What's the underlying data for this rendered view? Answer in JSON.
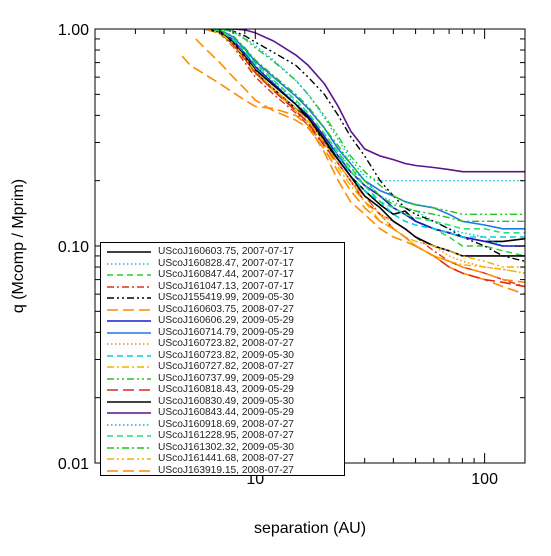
{
  "chart_data": {
    "type": "line",
    "title": "",
    "xlabel": "separation (AU)",
    "ylabel": "q (Mcomp / Mprim)",
    "xscale": "log",
    "yscale": "log",
    "xlim": [
      2.0,
      150
    ],
    "ylim": [
      0.01,
      1.0
    ],
    "x_ticks": [
      {
        "value": 10,
        "label": "10"
      },
      {
        "value": 100,
        "label": "100"
      }
    ],
    "y_ticks": [
      {
        "value": 0.01,
        "label": "0.01"
      },
      {
        "value": 0.1,
        "label": "0.10"
      },
      {
        "value": 1.0,
        "label": "1.00"
      }
    ],
    "grid": false,
    "legend_position": "lower-left",
    "series": [
      {
        "name": "UScoJ160603.75, 2007-07-17",
        "color": "#000000",
        "dash": "solid",
        "width": 1.6,
        "x": [
          6.0,
          7.0,
          8.0,
          9.0,
          10.0,
          12.0,
          15.0,
          17.0,
          20.0,
          23.0,
          26.0,
          30.0,
          35.0,
          40.0,
          45.0,
          50.0,
          60.0,
          70.0,
          80.0,
          100.0,
          120.0,
          150.0
        ],
        "y": [
          1.0,
          0.97,
          0.85,
          0.73,
          0.63,
          0.53,
          0.43,
          0.39,
          0.3,
          0.25,
          0.21,
          0.18,
          0.155,
          0.14,
          0.145,
          0.13,
          0.12,
          0.115,
          0.11,
          0.105,
          0.105,
          0.108
        ]
      },
      {
        "name": "UScoJ160828.47, 2007-07-17",
        "color": "#00c8d2",
        "dash": "dotted",
        "width": 1.4,
        "x": [
          6.0,
          7.0,
          8.0,
          9.0,
          10.0,
          12.0,
          15.0,
          17.0,
          20.0,
          23.0,
          26.0,
          30.0,
          35.0,
          40.0,
          45.0,
          50.0,
          60.0,
          70.0,
          80.0,
          100.0,
          120.0,
          150.0
        ],
        "y": [
          1.0,
          0.98,
          0.9,
          0.78,
          0.68,
          0.57,
          0.46,
          0.4,
          0.32,
          0.27,
          0.23,
          0.2,
          0.17,
          0.16,
          0.15,
          0.145,
          0.13,
          0.12,
          0.115,
          0.11,
          0.1,
          0.1
        ]
      },
      {
        "name": "UScoJ160847.44, 2007-07-17",
        "color": "#2ecc2e",
        "dash": "dashed",
        "width": 1.4,
        "x": [
          6.0,
          7.0,
          8.0,
          9.0,
          10.0,
          12.0,
          15.0,
          17.0,
          20.0,
          23.0,
          26.0,
          30.0,
          35.0,
          40.0,
          45.0,
          50.0,
          60.0,
          70.0,
          80.0,
          100.0,
          120.0,
          150.0
        ],
        "y": [
          1.0,
          0.99,
          0.92,
          0.8,
          0.7,
          0.58,
          0.47,
          0.41,
          0.33,
          0.27,
          0.23,
          0.19,
          0.16,
          0.15,
          0.14,
          0.13,
          0.12,
          0.11,
          0.1,
          0.1,
          0.095,
          0.09
        ]
      },
      {
        "name": "UScoJ161047.13, 2007-07-17",
        "color": "#e03020",
        "dash": "dashdot",
        "width": 1.4,
        "x": [
          6.0,
          7.0,
          8.0,
          9.0,
          10.0,
          12.0,
          15.0,
          17.0,
          20.0,
          23.0,
          26.0,
          30.0,
          35.0,
          40.0,
          45.0,
          50.0,
          60.0,
          70.0,
          80.0,
          100.0,
          120.0,
          150.0
        ],
        "y": [
          1.0,
          0.95,
          0.83,
          0.7,
          0.6,
          0.5,
          0.41,
          0.36,
          0.29,
          0.24,
          0.2,
          0.17,
          0.14,
          0.13,
          0.12,
          0.11,
          0.095,
          0.085,
          0.08,
          0.075,
          0.07,
          0.065
        ]
      },
      {
        "name": "UScoJ155419.99, 2009-05-30",
        "color": "#000000",
        "dash": "dashdotdot",
        "width": 1.4,
        "x": [
          6.0,
          7.0,
          8.0,
          9.0,
          10.0,
          12.0,
          15.0,
          17.0,
          20.0,
          23.0,
          26.0,
          30.0,
          35.0,
          40.0,
          45.0,
          50.0,
          60.0,
          70.0,
          80.0,
          100.0,
          120.0,
          150.0
        ],
        "y": [
          1.0,
          1.0,
          0.98,
          0.93,
          0.87,
          0.78,
          0.68,
          0.6,
          0.5,
          0.4,
          0.32,
          0.26,
          0.2,
          0.17,
          0.15,
          0.14,
          0.13,
          0.12,
          0.11,
          0.1,
          0.09,
          0.085
        ]
      },
      {
        "name": "UScoJ160603.75, 2008-07-27",
        "color": "#ff8c00",
        "dash": "longdash",
        "width": 1.6,
        "x": [
          4.8,
          5.2,
          6.0,
          7.0,
          8.0,
          9.0,
          10.0,
          12.0,
          15.0,
          17.0,
          20.0,
          23.0,
          26.0,
          30.0,
          35.0,
          40.0,
          45.0,
          50.0,
          60.0,
          70.0,
          80.0,
          100.0,
          120.0,
          150.0
        ],
        "y": [
          0.75,
          0.68,
          0.62,
          0.56,
          0.51,
          0.47,
          0.44,
          0.43,
          0.4,
          0.36,
          0.27,
          0.2,
          0.16,
          0.14,
          0.12,
          0.11,
          0.105,
          0.1,
          0.09,
          0.08,
          0.075,
          0.07,
          0.065,
          0.06
        ]
      },
      {
        "name": "UScoJ160606.29, 2009-05-29",
        "color": "#1c1ccc",
        "dash": "solid",
        "width": 1.6,
        "x": [
          6.0,
          7.0,
          8.0,
          9.0,
          10.0,
          12.0,
          15.0,
          17.0,
          20.0,
          23.0,
          26.0,
          30.0,
          35.0,
          40.0,
          45.0,
          50.0,
          60.0,
          70.0,
          80.0,
          100.0,
          120.0,
          150.0
        ],
        "y": [
          1.0,
          0.98,
          0.89,
          0.77,
          0.67,
          0.56,
          0.45,
          0.4,
          0.32,
          0.26,
          0.22,
          0.19,
          0.17,
          0.15,
          0.14,
          0.13,
          0.12,
          0.115,
          0.11,
          0.105,
          0.1,
          0.1
        ]
      },
      {
        "name": "UScoJ160714.79, 2009-05-29",
        "color": "#1e78e6",
        "dash": "solid",
        "width": 1.6,
        "x": [
          6.0,
          7.0,
          8.0,
          9.0,
          10.0,
          12.0,
          15.0,
          17.0,
          20.0,
          23.0,
          26.0,
          30.0,
          35.0,
          40.0,
          45.0,
          50.0,
          60.0,
          70.0,
          80.0,
          100.0,
          120.0,
          150.0
        ],
        "y": [
          1.0,
          0.99,
          0.92,
          0.81,
          0.71,
          0.6,
          0.49,
          0.43,
          0.35,
          0.28,
          0.24,
          0.2,
          0.18,
          0.17,
          0.16,
          0.155,
          0.15,
          0.14,
          0.13,
          0.125,
          0.12,
          0.12
        ]
      },
      {
        "name": "UScoJ160723.82, 2008-07-27",
        "color": "#ff8c00",
        "dash": "dotted",
        "width": 1.4,
        "x": [
          6.0,
          7.0,
          8.0,
          9.0,
          10.0,
          12.0,
          15.0,
          17.0,
          20.0,
          23.0,
          26.0,
          30.0,
          35.0,
          40.0,
          45.0,
          50.0,
          60.0,
          70.0,
          80.0,
          100.0,
          120.0,
          150.0
        ],
        "y": [
          1.0,
          0.96,
          0.86,
          0.74,
          0.64,
          0.53,
          0.43,
          0.38,
          0.3,
          0.24,
          0.2,
          0.17,
          0.14,
          0.13,
          0.12,
          0.11,
          0.1,
          0.09,
          0.085,
          0.08,
          0.078,
          0.075
        ]
      },
      {
        "name": "UScoJ160723.82, 2009-05-30",
        "color": "#00d0e0",
        "dash": "dashed",
        "width": 1.6,
        "x": [
          6.0,
          7.0,
          8.0,
          9.0,
          10.0,
          12.0,
          15.0,
          17.0,
          20.0,
          23.0,
          26.0,
          30.0,
          35.0,
          40.0,
          45.0,
          50.0,
          60.0,
          70.0,
          80.0,
          100.0,
          120.0,
          150.0
        ],
        "y": [
          1.0,
          0.97,
          0.88,
          0.76,
          0.66,
          0.55,
          0.45,
          0.39,
          0.31,
          0.26,
          0.21,
          0.18,
          0.16,
          0.14,
          0.13,
          0.125,
          0.12,
          0.115,
          0.11,
          0.11,
          0.11,
          0.11
        ]
      },
      {
        "name": "UScoJ160727.82, 2008-07-27",
        "color": "#f0b400",
        "dash": "dashdot",
        "width": 1.4,
        "x": [
          6.0,
          7.0,
          8.0,
          9.0,
          10.0,
          12.0,
          15.0,
          17.0,
          20.0,
          23.0,
          26.0,
          30.0,
          35.0,
          40.0,
          45.0,
          50.0,
          60.0,
          70.0,
          80.0,
          100.0,
          120.0,
          150.0
        ],
        "y": [
          1.0,
          0.95,
          0.84,
          0.72,
          0.62,
          0.52,
          0.42,
          0.37,
          0.29,
          0.23,
          0.19,
          0.16,
          0.13,
          0.12,
          0.11,
          0.1,
          0.09,
          0.085,
          0.082,
          0.08,
          0.078,
          0.075
        ]
      },
      {
        "name": "UScoJ160737.99, 2009-05-29",
        "color": "#22c41e",
        "dash": "dashdotdot",
        "width": 1.4,
        "x": [
          6.0,
          7.0,
          8.0,
          9.0,
          10.0,
          12.0,
          15.0,
          17.0,
          20.0,
          23.0,
          26.0,
          30.0,
          35.0,
          40.0,
          45.0,
          50.0,
          60.0,
          70.0,
          80.0,
          100.0,
          120.0,
          150.0
        ],
        "y": [
          1.0,
          1.0,
          0.97,
          0.9,
          0.82,
          0.71,
          0.58,
          0.5,
          0.4,
          0.32,
          0.26,
          0.22,
          0.19,
          0.17,
          0.16,
          0.155,
          0.15,
          0.145,
          0.14,
          0.14,
          0.14,
          0.14
        ]
      },
      {
        "name": "UScoJ160818.43, 2009-05-29",
        "color": "#e02a1c",
        "dash": "longdash",
        "width": 1.6,
        "x": [
          6.0,
          7.0,
          8.0,
          9.0,
          10.0,
          12.0,
          15.0,
          17.0,
          20.0,
          23.0,
          26.0,
          30.0,
          35.0,
          40.0,
          45.0,
          50.0,
          60.0,
          70.0,
          80.0,
          100.0,
          120.0,
          150.0
        ],
        "y": [
          1.0,
          0.96,
          0.85,
          0.73,
          0.63,
          0.52,
          0.42,
          0.37,
          0.29,
          0.24,
          0.2,
          0.16,
          0.14,
          0.12,
          0.11,
          0.1,
          0.09,
          0.08,
          0.075,
          0.07,
          0.068,
          0.065
        ]
      },
      {
        "name": "UScoJ160830.49, 2009-05-30",
        "color": "#000000",
        "dash": "solid",
        "width": 1.6,
        "x": [
          6.0,
          7.0,
          8.0,
          9.0,
          10.0,
          12.0,
          15.0,
          17.0,
          20.0,
          23.0,
          26.0,
          30.0,
          35.0,
          40.0,
          45.0,
          50.0,
          60.0,
          70.0,
          80.0,
          100.0,
          120.0,
          150.0
        ],
        "y": [
          1.0,
          0.97,
          0.87,
          0.75,
          0.65,
          0.55,
          0.45,
          0.39,
          0.31,
          0.25,
          0.21,
          0.17,
          0.15,
          0.13,
          0.12,
          0.11,
          0.1,
          0.095,
          0.09,
          0.09,
          0.09,
          0.09
        ]
      },
      {
        "name": "UScoJ160843.44, 2009-05-29",
        "color": "#5a148c",
        "dash": "solid",
        "width": 1.6,
        "x": [
          6.0,
          7.0,
          8.0,
          9.0,
          10.0,
          12.0,
          15.0,
          17.0,
          20.0,
          23.0,
          26.0,
          30.0,
          35.0,
          40.0,
          45.0,
          50.0,
          60.0,
          70.0,
          80.0,
          100.0,
          120.0,
          150.0
        ],
        "y": [
          1.0,
          1.0,
          1.0,
          0.99,
          0.96,
          0.88,
          0.76,
          0.68,
          0.56,
          0.44,
          0.34,
          0.28,
          0.26,
          0.25,
          0.24,
          0.235,
          0.23,
          0.225,
          0.22,
          0.22,
          0.22,
          0.22
        ]
      },
      {
        "name": "UScoJ160918.69, 2008-07-27",
        "color": "#00c0d0",
        "dash": "dotted",
        "width": 1.4,
        "x": [
          6.0,
          7.0,
          8.0,
          9.0,
          10.0,
          12.0,
          15.0,
          17.0,
          20.0,
          23.0,
          26.0,
          30.0,
          35.0,
          40.0,
          45.0,
          50.0,
          60.0,
          70.0,
          80.0,
          100.0,
          120.0,
          150.0
        ],
        "y": [
          1.0,
          1.0,
          0.97,
          0.91,
          0.84,
          0.72,
          0.58,
          0.5,
          0.39,
          0.31,
          0.25,
          0.21,
          0.2,
          0.2,
          0.2,
          0.2,
          0.2,
          0.2,
          0.2,
          0.2,
          0.2,
          0.2
        ]
      },
      {
        "name": "UScoJ161228.95, 2008-07-27",
        "color": "#26e07a",
        "dash": "dashed",
        "width": 1.6,
        "x": [
          6.0,
          7.0,
          8.0,
          9.0,
          10.0,
          12.0,
          15.0,
          17.0,
          20.0,
          23.0,
          26.0,
          30.0,
          35.0,
          40.0,
          45.0,
          50.0,
          60.0,
          70.0,
          80.0,
          100.0,
          120.0,
          150.0
        ],
        "y": [
          1.0,
          0.98,
          0.9,
          0.79,
          0.69,
          0.58,
          0.47,
          0.41,
          0.33,
          0.27,
          0.22,
          0.19,
          0.16,
          0.15,
          0.14,
          0.135,
          0.13,
          0.125,
          0.12,
          0.12,
          0.115,
          0.115
        ]
      },
      {
        "name": "UScoJ161302.32, 2009-05-30",
        "color": "#20c020",
        "dash": "dashdot",
        "width": 1.4,
        "x": [
          6.0,
          7.0,
          8.0,
          9.0,
          10.0,
          12.0,
          15.0,
          17.0,
          20.0,
          23.0,
          26.0,
          30.0,
          35.0,
          40.0,
          45.0,
          50.0,
          60.0,
          70.0,
          80.0,
          100.0,
          120.0,
          150.0
        ],
        "y": [
          1.0,
          0.99,
          0.93,
          0.82,
          0.72,
          0.61,
          0.5,
          0.44,
          0.35,
          0.29,
          0.24,
          0.2,
          0.17,
          0.155,
          0.15,
          0.145,
          0.14,
          0.135,
          0.13,
          0.13,
          0.13,
          0.13
        ]
      },
      {
        "name": "UScoJ161441.68, 2008-07-27",
        "color": "#f0b000",
        "dash": "dashdotdot",
        "width": 1.4,
        "x": [
          6.0,
          7.0,
          8.0,
          9.0,
          10.0,
          12.0,
          15.0,
          17.0,
          20.0,
          23.0,
          26.0,
          30.0,
          35.0,
          40.0,
          45.0,
          50.0,
          60.0,
          70.0,
          80.0,
          100.0,
          120.0,
          150.0
        ],
        "y": [
          1.0,
          0.96,
          0.86,
          0.74,
          0.64,
          0.53,
          0.43,
          0.38,
          0.3,
          0.24,
          0.2,
          0.16,
          0.14,
          0.12,
          0.11,
          0.105,
          0.1,
          0.095,
          0.09,
          0.085,
          0.08,
          0.08
        ]
      },
      {
        "name": "UScoJ163919.15, 2008-07-27",
        "color": "#ff8c00",
        "dash": "longdash",
        "width": 1.6,
        "x": [
          5.5,
          6.0,
          7.0,
          8.0,
          9.0,
          10.0,
          12.0,
          15.0,
          17.0,
          20.0,
          23.0,
          26.0,
          30.0,
          35.0,
          40.0,
          45.0,
          50.0,
          60.0,
          70.0,
          80.0,
          100.0,
          120.0,
          150.0
        ],
        "y": [
          0.9,
          0.82,
          0.7,
          0.6,
          0.53,
          0.47,
          0.42,
          0.38,
          0.35,
          0.28,
          0.22,
          0.18,
          0.15,
          0.13,
          0.12,
          0.11,
          0.1,
          0.09,
          0.085,
          0.08,
          0.075,
          0.07,
          0.068
        ]
      }
    ]
  }
}
